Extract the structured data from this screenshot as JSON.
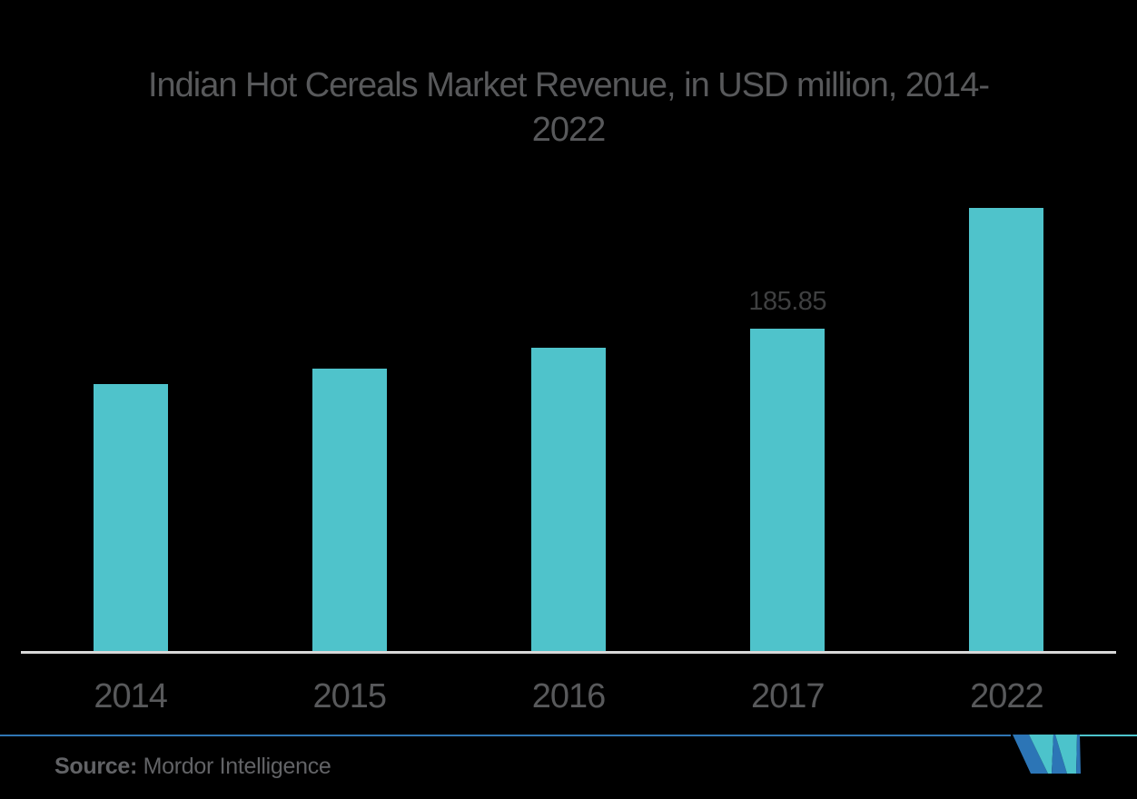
{
  "chart": {
    "title_line1": "Indian Hot Cereals Market Revenue, in USD million, 2014-",
    "title_line2": "2022"
  },
  "chart_data": {
    "type": "bar",
    "title": "Indian Hot Cereals Market Revenue, in USD million, 2014-2022",
    "categories": [
      "2014",
      "2015",
      "2016",
      "2017",
      "2022"
    ],
    "values": [
      154,
      163,
      175,
      185.85,
      255.5
    ],
    "data_labels": [
      "",
      "",
      "",
      "185.85",
      ""
    ],
    "xlabel": "",
    "ylabel": "",
    "ylim": [
      0,
      282
    ],
    "grid": false,
    "legend": false,
    "bar_color": "#4FC3CB",
    "background": "#000000",
    "note": "only the 2017 bar carries a printed value; other values estimated from bar heights"
  },
  "footer": {
    "source_label": "Source:",
    "source_value": " Mordor Intelligence"
  },
  "colors": {
    "title_text": "#58595B",
    "axis_label_text": "#58595B",
    "data_label_text": "#3F4041",
    "axis_line": "#D8D8D8",
    "rule_blue": "#2F76B4",
    "rule_teal": "#4DC4CD",
    "logo_blue": "#2C75B6",
    "logo_teal": "#4CC3CB"
  }
}
